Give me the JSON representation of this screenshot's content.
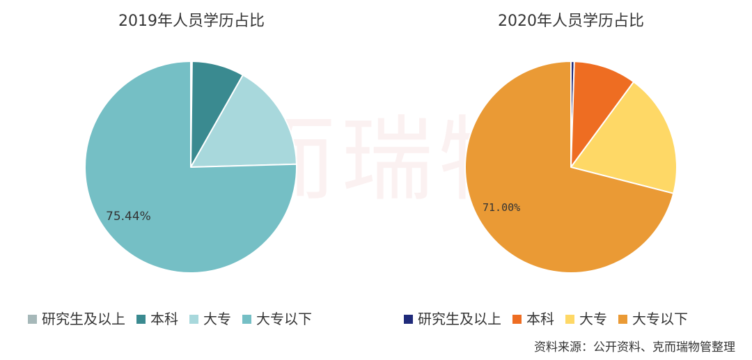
{
  "watermark": "克而瑞物管",
  "source": "资料来源：公开资料、克而瑞物管整理",
  "chart_data": [
    {
      "type": "pie",
      "title": "2019年人员学历占比",
      "categories": [
        "研究生及以上",
        "本科",
        "大专",
        "大专以下"
      ],
      "values": [
        0.2,
        8.0,
        16.36,
        75.44
      ],
      "colors": [
        "#a6b8b9",
        "#3a8a90",
        "#a8d8dc",
        "#75bfc5"
      ],
      "data_labels": [
        {
          "category": "大专以下",
          "text": "75.44%"
        }
      ],
      "legend_position": "bottom"
    },
    {
      "type": "pie",
      "title": "2020年人员学历占比",
      "categories": [
        "研究生及以上",
        "本科",
        "大专",
        "大专以下"
      ],
      "values": [
        0.5,
        9.6,
        18.9,
        71.0
      ],
      "colors": [
        "#1f2a7a",
        "#ee6d22",
        "#fed866",
        "#ea9a35"
      ],
      "data_labels": [
        {
          "category": "大专以下",
          "text": "71.00%"
        }
      ],
      "legend_position": "bottom"
    }
  ]
}
